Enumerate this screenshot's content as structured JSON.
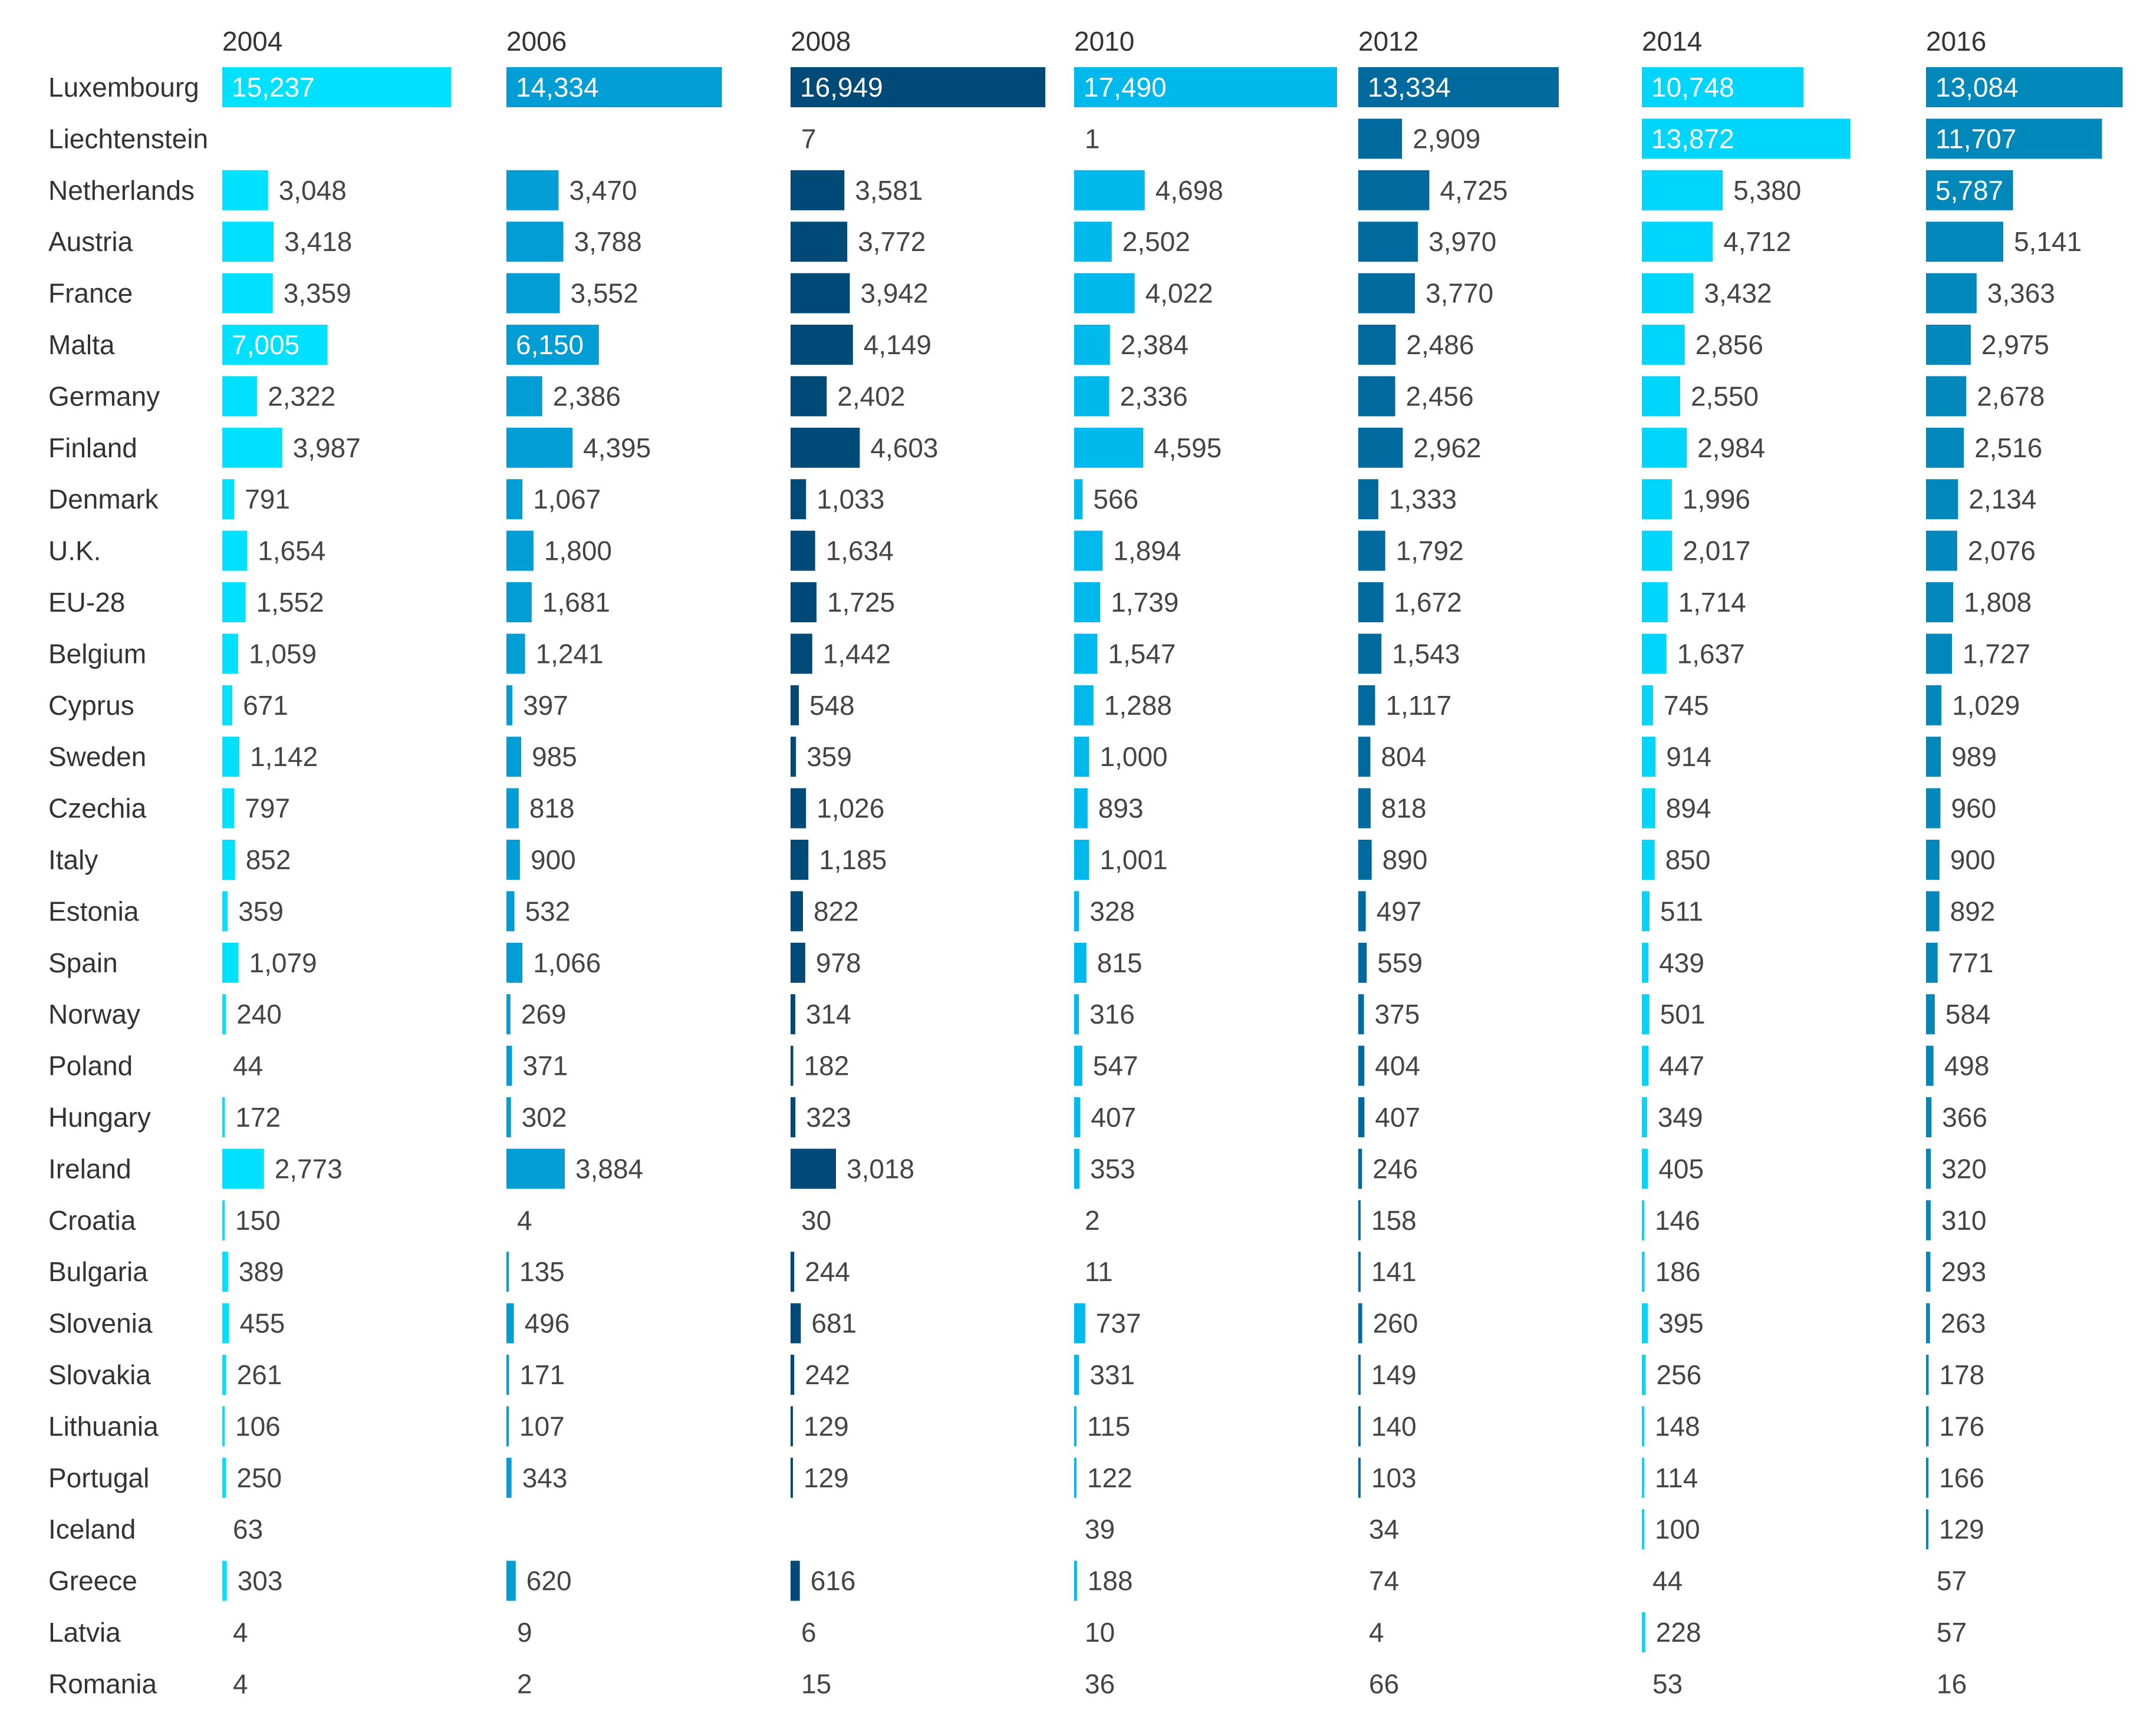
{
  "chart_data": {
    "type": "bar",
    "title": "",
    "xlabel": "",
    "ylabel": "",
    "orientation": "horizontal",
    "panel_colors": [
      "#00e0ff",
      "#009ed4",
      "#004a78",
      "#00b9ec",
      "#006a9e",
      "#00d6fc",
      "#0088bb"
    ],
    "categories": [
      "Luxembourg",
      "Liechtenstein",
      "Netherlands",
      "Austria",
      "France",
      "Malta",
      "Germany",
      "Finland",
      "Denmark",
      "U.K.",
      "EU-28",
      "Belgium",
      "Cyprus",
      "Sweden",
      "Czechia",
      "Italy",
      "Estonia",
      "Spain",
      "Norway",
      "Poland",
      "Hungary",
      "Ireland",
      "Croatia",
      "Bulgaria",
      "Slovenia",
      "Slovakia",
      "Lithuania",
      "Portugal",
      "Iceland",
      "Greece",
      "Latvia",
      "Romania"
    ],
    "series": [
      {
        "name": "2004",
        "values": [
          15237,
          null,
          3048,
          3418,
          3359,
          7005,
          2322,
          3987,
          791,
          1654,
          1552,
          1059,
          671,
          1142,
          797,
          852,
          359,
          1079,
          240,
          44,
          172,
          2773,
          150,
          389,
          455,
          261,
          106,
          250,
          63,
          303,
          4,
          4
        ]
      },
      {
        "name": "2006",
        "values": [
          14334,
          null,
          3470,
          3788,
          3552,
          6150,
          2386,
          4395,
          1067,
          1800,
          1681,
          1241,
          397,
          985,
          818,
          900,
          532,
          1066,
          269,
          371,
          302,
          3884,
          4,
          135,
          496,
          171,
          107,
          343,
          null,
          620,
          9,
          2
        ]
      },
      {
        "name": "2008",
        "values": [
          16949,
          7,
          3581,
          3772,
          3942,
          4149,
          2402,
          4603,
          1033,
          1634,
          1725,
          1442,
          548,
          359,
          1026,
          1185,
          822,
          978,
          314,
          182,
          323,
          3018,
          30,
          244,
          681,
          242,
          129,
          129,
          null,
          616,
          6,
          15
        ]
      },
      {
        "name": "2010",
        "values": [
          17490,
          1,
          4698,
          2502,
          4022,
          2384,
          2336,
          4595,
          566,
          1894,
          1739,
          1547,
          1288,
          1000,
          893,
          1001,
          328,
          815,
          316,
          547,
          407,
          353,
          2,
          11,
          737,
          331,
          115,
          122,
          39,
          188,
          10,
          36
        ]
      },
      {
        "name": "2012",
        "values": [
          13334,
          2909,
          4725,
          3970,
          3770,
          2486,
          2456,
          2962,
          1333,
          1792,
          1672,
          1543,
          1117,
          804,
          818,
          890,
          497,
          559,
          375,
          404,
          407,
          246,
          158,
          141,
          260,
          149,
          140,
          103,
          34,
          74,
          4,
          66
        ]
      },
      {
        "name": "2014",
        "values": [
          10748,
          13872,
          5380,
          4712,
          3432,
          2856,
          2550,
          2984,
          1996,
          2017,
          1714,
          1637,
          745,
          914,
          894,
          850,
          511,
          439,
          501,
          447,
          349,
          405,
          146,
          186,
          395,
          256,
          148,
          114,
          100,
          44,
          228,
          53
        ]
      },
      {
        "name": "2016",
        "values": [
          13084,
          11707,
          5787,
          5141,
          3363,
          2975,
          2678,
          2516,
          2134,
          2076,
          1808,
          1727,
          1029,
          989,
          960,
          900,
          892,
          771,
          584,
          498,
          366,
          320,
          310,
          293,
          263,
          178,
          176,
          166,
          129,
          57,
          57,
          16
        ]
      }
    ]
  }
}
